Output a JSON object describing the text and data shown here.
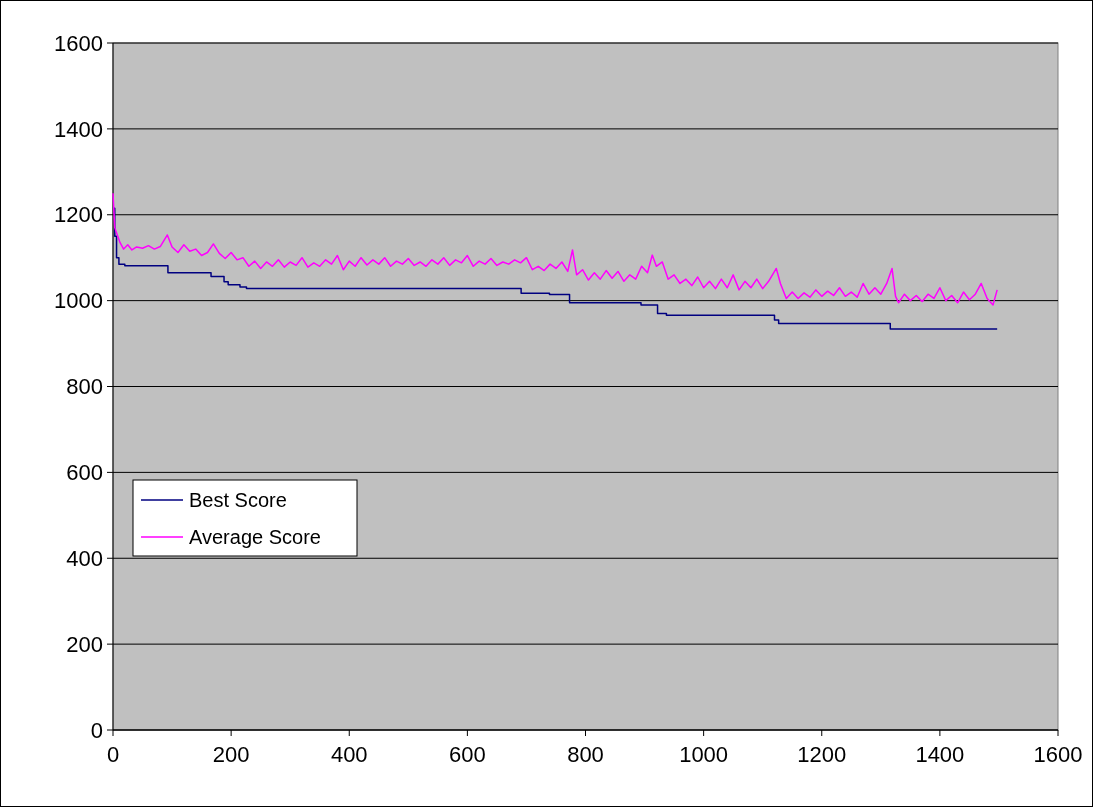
{
  "chart_data": {
    "type": "line",
    "xlim": [
      0,
      1600
    ],
    "xticks": [
      0,
      200,
      400,
      600,
      800,
      1000,
      1200,
      1400,
      1600
    ],
    "ylim": [
      0,
      1600
    ],
    "yticks": [
      0,
      200,
      400,
      600,
      800,
      1000,
      1200,
      1400,
      1600
    ],
    "grid": "y",
    "legend": "left",
    "marker": "none",
    "line_style": "solid",
    "series": [
      {
        "name": "Best Score",
        "type": "step",
        "color": "#000080",
        "x": [
          0,
          3,
          6,
          10,
          20,
          93,
          166,
          188,
          195,
          215,
          226,
          691,
          739,
          773,
          894,
          922,
          937,
          1120,
          1127,
          1316,
          1497
        ],
        "values": [
          1215,
          1150,
          1100,
          1085,
          1081,
          1065,
          1056,
          1044,
          1037,
          1032,
          1028,
          1017,
          1014,
          995,
          990,
          970,
          966,
          955,
          947,
          934,
          934
        ]
      },
      {
        "name": "Average Score",
        "color": "#ff00ff",
        "x": [
          0,
          3,
          8,
          12,
          18,
          25,
          32,
          40,
          50,
          60,
          70,
          80,
          92,
          100,
          110,
          120,
          130,
          140,
          150,
          160,
          170,
          180,
          190,
          200,
          210,
          220,
          230,
          240,
          250,
          260,
          270,
          280,
          290,
          300,
          310,
          320,
          330,
          340,
          350,
          360,
          370,
          380,
          390,
          400,
          410,
          420,
          430,
          440,
          450,
          460,
          470,
          480,
          490,
          500,
          510,
          520,
          530,
          540,
          550,
          560,
          570,
          580,
          590,
          600,
          610,
          620,
          630,
          640,
          650,
          660,
          670,
          680,
          690,
          700,
          710,
          720,
          730,
          740,
          750,
          760,
          770,
          778,
          785,
          795,
          805,
          815,
          825,
          835,
          845,
          855,
          865,
          875,
          885,
          895,
          905,
          913,
          920,
          930,
          940,
          950,
          960,
          970,
          980,
          990,
          1000,
          1010,
          1020,
          1030,
          1040,
          1050,
          1060,
          1070,
          1080,
          1090,
          1100,
          1110,
          1123,
          1130,
          1140,
          1150,
          1160,
          1170,
          1180,
          1190,
          1200,
          1210,
          1220,
          1230,
          1240,
          1250,
          1260,
          1270,
          1280,
          1290,
          1300,
          1310,
          1319,
          1325,
          1330,
          1340,
          1350,
          1360,
          1370,
          1380,
          1390,
          1400,
          1410,
          1420,
          1430,
          1440,
          1450,
          1460,
          1470,
          1480,
          1490,
          1497
        ],
        "values": [
          1250,
          1170,
          1150,
          1135,
          1120,
          1130,
          1118,
          1125,
          1122,
          1128,
          1120,
          1126,
          1153,
          1125,
          1112,
          1130,
          1115,
          1120,
          1105,
          1112,
          1132,
          1110,
          1098,
          1112,
          1095,
          1100,
          1080,
          1092,
          1075,
          1090,
          1080,
          1095,
          1078,
          1090,
          1082,
          1100,
          1078,
          1088,
          1080,
          1095,
          1085,
          1105,
          1072,
          1092,
          1080,
          1100,
          1083,
          1095,
          1085,
          1100,
          1080,
          1092,
          1085,
          1098,
          1082,
          1090,
          1080,
          1095,
          1085,
          1100,
          1082,
          1095,
          1088,
          1105,
          1080,
          1092,
          1085,
          1098,
          1082,
          1090,
          1085,
          1095,
          1088,
          1100,
          1072,
          1080,
          1070,
          1085,
          1075,
          1090,
          1068,
          1118,
          1060,
          1072,
          1048,
          1065,
          1050,
          1070,
          1052,
          1068,
          1045,
          1060,
          1050,
          1080,
          1065,
          1106,
          1080,
          1090,
          1050,
          1060,
          1040,
          1050,
          1035,
          1055,
          1030,
          1045,
          1028,
          1050,
          1030,
          1060,
          1025,
          1045,
          1030,
          1050,
          1028,
          1045,
          1075,
          1040,
          1005,
          1020,
          1005,
          1018,
          1008,
          1025,
          1010,
          1022,
          1012,
          1030,
          1010,
          1020,
          1008,
          1040,
          1015,
          1030,
          1015,
          1040,
          1075,
          1010,
          995,
          1015,
          1000,
          1012,
          998,
          1015,
          1005,
          1030,
          1000,
          1012,
          995,
          1020,
          1002,
          1015,
          1040,
          1005,
          990,
          1025
        ]
      }
    ]
  }
}
